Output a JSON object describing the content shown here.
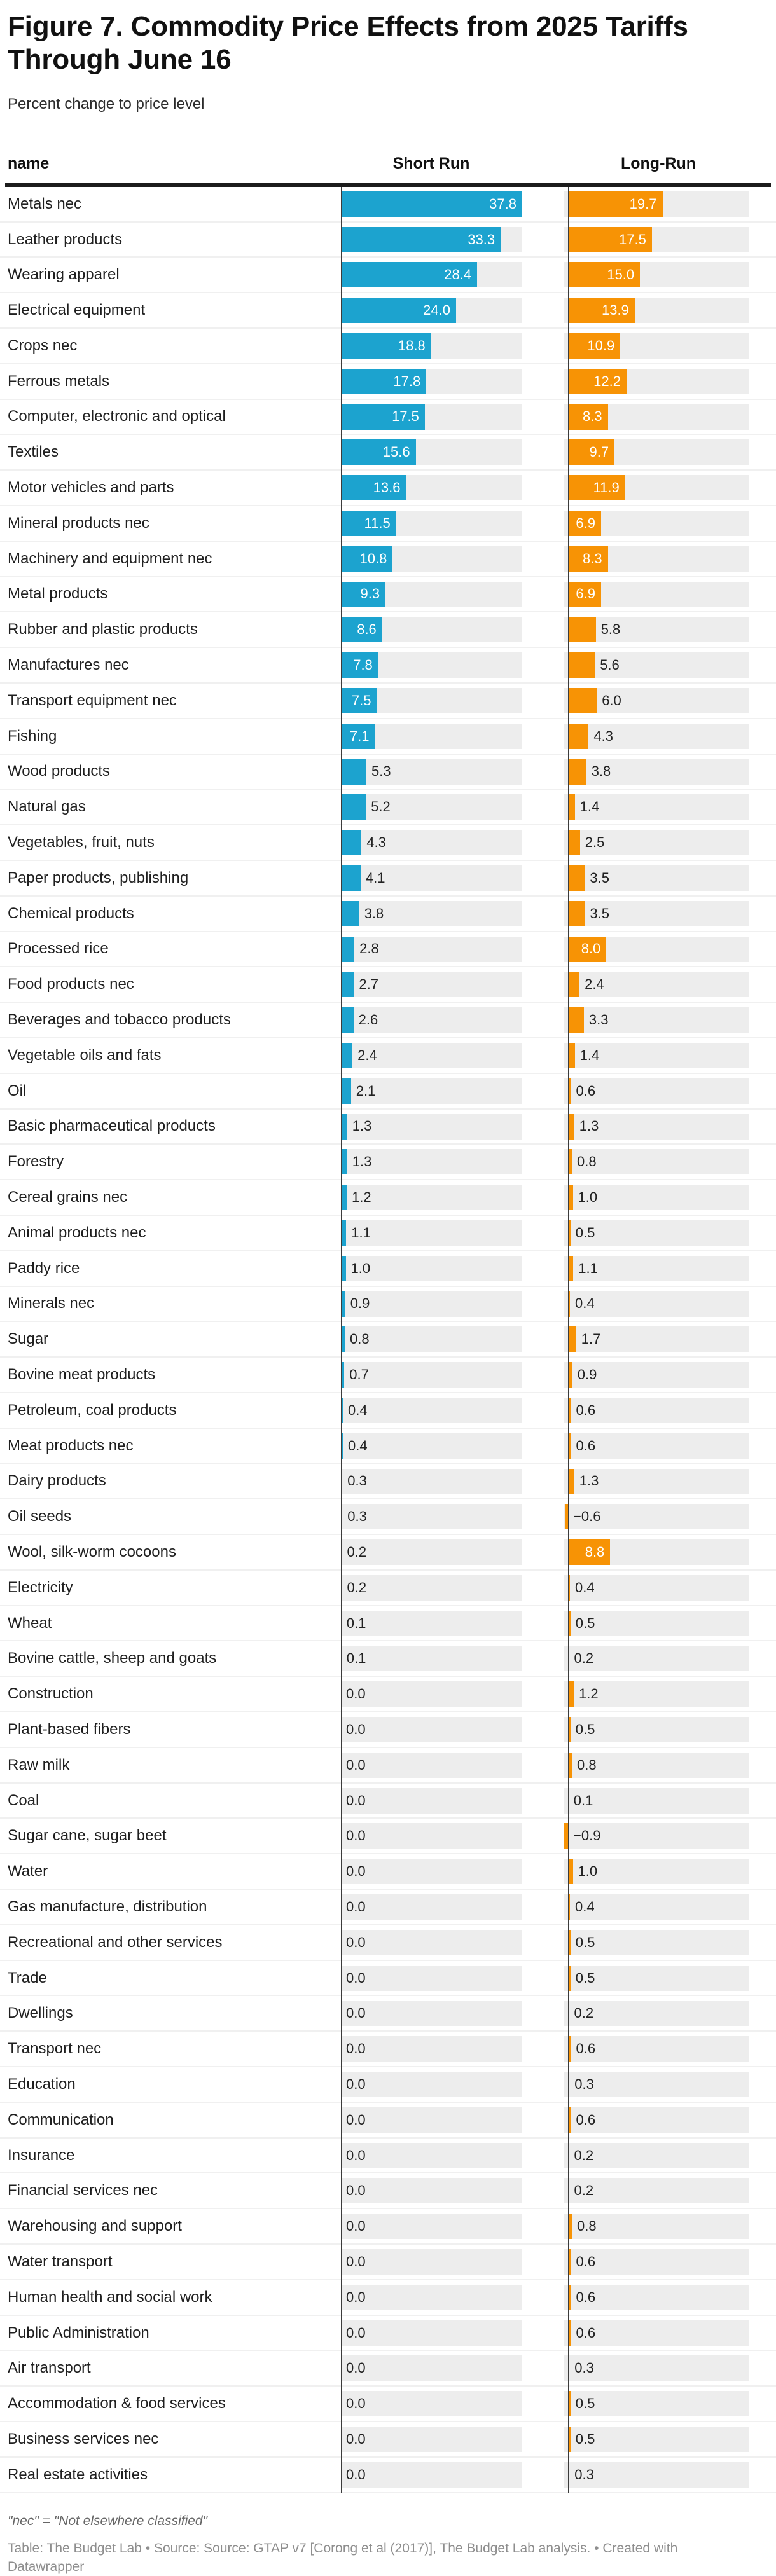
{
  "header": {
    "title": "Figure 7. Commodity Price Effects from 2025 Tariffs Through June 16",
    "subtitle": "Percent change to price level"
  },
  "table": {
    "columns": [
      "name",
      "Short Run",
      "Long-Run"
    ]
  },
  "colors": {
    "short_run_bar": "#1ca3cf",
    "long_run_bar": "#f79305",
    "track": "#ededed",
    "header_rule": "#1c1c1c"
  },
  "chart_data": {
    "type": "bar",
    "orientation": "horizontal",
    "title": "Figure 7. Commodity Price Effects from 2025 Tariffs Through June 16",
    "subtitle": "Percent change to price level",
    "xlim": [
      -0.9,
      37.8
    ],
    "grid": false,
    "legend_position": "column-headers",
    "series": [
      {
        "name": "Short Run",
        "color": "#1ca3cf"
      },
      {
        "name": "Long-Run",
        "color": "#f79305"
      }
    ],
    "rows": [
      {
        "name": "Metals nec",
        "short": 37.8,
        "long": 19.7
      },
      {
        "name": "Leather products",
        "short": 33.3,
        "long": 17.5
      },
      {
        "name": "Wearing apparel",
        "short": 28.4,
        "long": 15.0
      },
      {
        "name": "Electrical equipment",
        "short": 24.0,
        "long": 13.9
      },
      {
        "name": "Crops nec",
        "short": 18.8,
        "long": 10.9
      },
      {
        "name": "Ferrous metals",
        "short": 17.8,
        "long": 12.2
      },
      {
        "name": "Computer, electronic and optical",
        "short": 17.5,
        "long": 8.3
      },
      {
        "name": "Textiles",
        "short": 15.6,
        "long": 9.7
      },
      {
        "name": "Motor vehicles and parts",
        "short": 13.6,
        "long": 11.9
      },
      {
        "name": "Mineral products nec",
        "short": 11.5,
        "long": 6.9
      },
      {
        "name": "Machinery and equipment nec",
        "short": 10.8,
        "long": 8.3
      },
      {
        "name": "Metal products",
        "short": 9.3,
        "long": 6.9
      },
      {
        "name": "Rubber and plastic products",
        "short": 8.6,
        "long": 5.8
      },
      {
        "name": "Manufactures nec",
        "short": 7.8,
        "long": 5.6
      },
      {
        "name": "Transport equipment nec",
        "short": 7.5,
        "long": 6.0
      },
      {
        "name": "Fishing",
        "short": 7.1,
        "long": 4.3
      },
      {
        "name": "Wood products",
        "short": 5.3,
        "long": 3.8
      },
      {
        "name": "Natural gas",
        "short": 5.2,
        "long": 1.4
      },
      {
        "name": "Vegetables, fruit, nuts",
        "short": 4.3,
        "long": 2.5
      },
      {
        "name": "Paper products, publishing",
        "short": 4.1,
        "long": 3.5
      },
      {
        "name": "Chemical products",
        "short": 3.8,
        "long": 3.5
      },
      {
        "name": "Processed rice",
        "short": 2.8,
        "long": 8.0
      },
      {
        "name": "Food products nec",
        "short": 2.7,
        "long": 2.4
      },
      {
        "name": "Beverages and tobacco products",
        "short": 2.6,
        "long": 3.3
      },
      {
        "name": "Vegetable oils and fats",
        "short": 2.4,
        "long": 1.4
      },
      {
        "name": "Oil",
        "short": 2.1,
        "long": 0.6
      },
      {
        "name": "Basic pharmaceutical products",
        "short": 1.3,
        "long": 1.3
      },
      {
        "name": "Forestry",
        "short": 1.3,
        "long": 0.8
      },
      {
        "name": "Cereal grains nec",
        "short": 1.2,
        "long": 1.0
      },
      {
        "name": "Animal products nec",
        "short": 1.1,
        "long": 0.5
      },
      {
        "name": "Paddy rice",
        "short": 1.0,
        "long": 1.1
      },
      {
        "name": "Minerals nec",
        "short": 0.9,
        "long": 0.4
      },
      {
        "name": "Sugar",
        "short": 0.8,
        "long": 1.7
      },
      {
        "name": "Bovine meat products",
        "short": 0.7,
        "long": 0.9
      },
      {
        "name": "Petroleum, coal products",
        "short": 0.4,
        "long": 0.6
      },
      {
        "name": "Meat products nec",
        "short": 0.4,
        "long": 0.6
      },
      {
        "name": "Dairy products",
        "short": 0.3,
        "long": 1.3
      },
      {
        "name": "Oil seeds",
        "short": 0.3,
        "long": -0.6
      },
      {
        "name": "Wool, silk-worm cocoons",
        "short": 0.2,
        "long": 8.8
      },
      {
        "name": "Electricity",
        "short": 0.2,
        "long": 0.4
      },
      {
        "name": "Wheat",
        "short": 0.1,
        "long": 0.5
      },
      {
        "name": "Bovine cattle, sheep and goats",
        "short": 0.1,
        "long": 0.2
      },
      {
        "name": "Construction",
        "short": 0.0,
        "long": 1.2
      },
      {
        "name": "Plant-based fibers",
        "short": 0.0,
        "long": 0.5
      },
      {
        "name": "Raw milk",
        "short": 0.0,
        "long": 0.8
      },
      {
        "name": "Coal",
        "short": 0.0,
        "long": 0.1
      },
      {
        "name": "Sugar cane, sugar beet",
        "short": 0.0,
        "long": -0.9
      },
      {
        "name": "Water",
        "short": 0.0,
        "long": 1.0
      },
      {
        "name": "Gas manufacture, distribution",
        "short": 0.0,
        "long": 0.4
      },
      {
        "name": "Recreational and other services",
        "short": 0.0,
        "long": 0.5
      },
      {
        "name": "Trade",
        "short": 0.0,
        "long": 0.5
      },
      {
        "name": "Dwellings",
        "short": 0.0,
        "long": 0.2
      },
      {
        "name": "Transport nec",
        "short": 0.0,
        "long": 0.6
      },
      {
        "name": "Education",
        "short": 0.0,
        "long": 0.3
      },
      {
        "name": "Communication",
        "short": 0.0,
        "long": 0.6
      },
      {
        "name": "Insurance",
        "short": 0.0,
        "long": 0.2
      },
      {
        "name": "Financial services nec",
        "short": 0.0,
        "long": 0.2
      },
      {
        "name": "Warehousing and support",
        "short": 0.0,
        "long": 0.8
      },
      {
        "name": "Water transport",
        "short": 0.0,
        "long": 0.6
      },
      {
        "name": "Human health and social work",
        "short": 0.0,
        "long": 0.6
      },
      {
        "name": "Public Administration",
        "short": 0.0,
        "long": 0.6
      },
      {
        "name": "Air transport",
        "short": 0.0,
        "long": 0.3
      },
      {
        "name": "Accommodation & food services",
        "short": 0.0,
        "long": 0.5
      },
      {
        "name": "Business services nec",
        "short": 0.0,
        "long": 0.5
      },
      {
        "name": "Real estate activities",
        "short": 0.0,
        "long": 0.3
      }
    ]
  },
  "footer": {
    "note": "\"nec\" = \"Not elsewhere classified\"",
    "source": "Table: The Budget Lab • Source: Source: GTAP v7 [Corong et al (2017)], The Budget Lab analysis. • Created with Datawrapper"
  }
}
